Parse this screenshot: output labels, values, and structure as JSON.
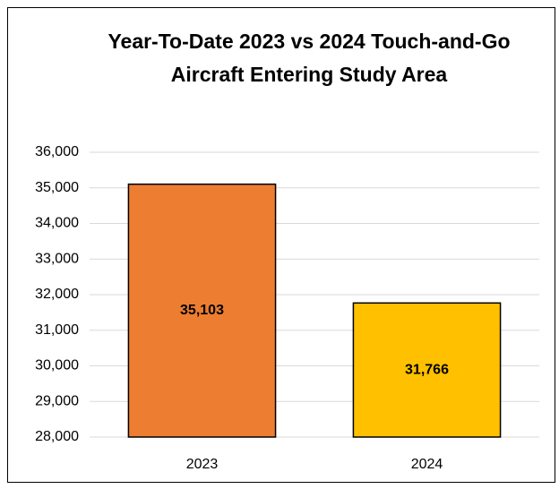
{
  "chart_data": {
    "type": "bar",
    "title": "Year-To-Date 2023 vs 2024 Touch-and-Go Aircraft Entering Study Area",
    "categories": [
      "2023",
      "2024"
    ],
    "values": [
      35103,
      31766
    ],
    "value_labels": [
      "35,103",
      "31,766"
    ],
    "colors": [
      "#ed7d31",
      "#ffc000"
    ],
    "ylim": [
      28000,
      36000
    ],
    "yticks": [
      {
        "value": 28000,
        "label": "28,000"
      },
      {
        "value": 29000,
        "label": "29,000"
      },
      {
        "value": 30000,
        "label": "30,000"
      },
      {
        "value": 31000,
        "label": "31,000"
      },
      {
        "value": 32000,
        "label": "32,000"
      },
      {
        "value": 33000,
        "label": "33,000"
      },
      {
        "value": 34000,
        "label": "34,000"
      },
      {
        "value": 35000,
        "label": "35,000"
      },
      {
        "value": 36000,
        "label": "36,000"
      }
    ],
    "grid": true
  }
}
